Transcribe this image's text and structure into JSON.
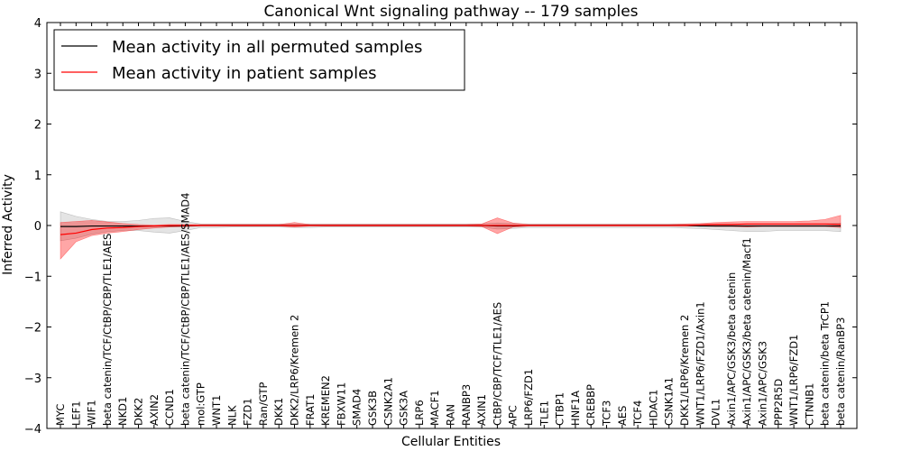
{
  "chart_data": {
    "type": "line",
    "title": "Canonical Wnt signaling pathway -- 179 samples",
    "xlabel": "Cellular Entities",
    "ylabel": "Inferred Activity",
    "ylim": [
      -4,
      4
    ],
    "yticks": [
      -4,
      -3,
      -2,
      -1,
      0,
      1,
      2,
      3,
      4
    ],
    "ytick_labels": [
      "−4",
      "−3",
      "−2",
      "−1",
      "0",
      "1",
      "2",
      "3",
      "4"
    ],
    "categories": [
      "MYC",
      "LEF1",
      "WIF1",
      "beta catenin/TCF/CtBP/CBP/TLE1/AES",
      "NKD1",
      "DKK2",
      "AXIN2",
      "CCND1",
      "beta catenin/TCF/CtBP/CBP/TLE1/AES/SMAD4",
      "mol:GTP",
      "WNT1",
      "NLK",
      "FZD1",
      "Ran/GTP",
      "DKK1",
      "DKK2/LRP6/Kremen 2",
      "FRAT1",
      "KREMEN2",
      "FBXW11",
      "SMAD4",
      "GSK3B",
      "CSNK2A1",
      "GSK3A",
      "LRP6",
      "MACF1",
      "RAN",
      "RANBP3",
      "AXIN1",
      "CtBP/CBP/TCF/TLE1/AES",
      "APC",
      "LRP6/FZD1",
      "TLE1",
      "CTBP1",
      "HNF1A",
      "CREBBP",
      "TCF3",
      "AES",
      "TCF4",
      "HDAC1",
      "CSNK1A1",
      "DKK1/LRP6/Kremen 2",
      "WNT1/LRP6/FZD1/Axin1",
      "DVL1",
      "Axin1/APC/GSK3/beta catenin",
      "Axin1/APC/GSK3/beta catenin/Macf1",
      "Axin1/APC/GSK3",
      "PPP2R5D",
      "WNT1/LRP6/FZD1",
      "CTNNB1",
      "beta catenin/beta TrCP1",
      "beta catenin/RanBP3"
    ],
    "legend_position": "top-left",
    "series": [
      {
        "name": "Mean activity in all permuted samples",
        "color": "#000000",
        "values": [
          -0.02,
          -0.02,
          -0.01,
          -0.01,
          -0.01,
          -0.01,
          -0.01,
          -0.01,
          -0.01,
          0,
          0,
          0,
          0,
          0,
          0,
          0,
          0,
          0,
          0,
          0,
          0,
          0,
          0,
          0,
          0,
          0,
          0,
          0,
          -0.01,
          -0.01,
          0,
          0,
          0,
          0,
          0,
          0,
          0,
          0,
          0,
          0,
          0,
          -0.01,
          -0.01,
          -0.01,
          -0.01,
          -0.01,
          -0.01,
          -0.01,
          -0.01,
          -0.01,
          -0.01
        ],
        "band_lower": [
          -0.3,
          -0.25,
          -0.17,
          -0.12,
          -0.1,
          -0.1,
          -0.13,
          -0.15,
          -0.1,
          -0.04,
          -0.04,
          -0.03,
          -0.03,
          -0.03,
          -0.03,
          -0.04,
          -0.04,
          -0.03,
          -0.03,
          -0.03,
          -0.03,
          -0.03,
          -0.03,
          -0.03,
          -0.03,
          -0.03,
          -0.03,
          -0.03,
          -0.07,
          -0.06,
          -0.04,
          -0.04,
          -0.04,
          -0.04,
          -0.04,
          -0.04,
          -0.04,
          -0.04,
          -0.04,
          -0.04,
          -0.05,
          -0.06,
          -0.08,
          -0.1,
          -0.12,
          -0.12,
          -0.1,
          -0.1,
          -0.1,
          -0.1,
          -0.12
        ],
        "band_upper": [
          0.27,
          0.18,
          0.12,
          0.08,
          0.08,
          0.1,
          0.14,
          0.15,
          0.08,
          0.03,
          0.03,
          0.03,
          0.03,
          0.03,
          0.03,
          0.03,
          0.03,
          0.03,
          0.03,
          0.03,
          0.03,
          0.03,
          0.03,
          0.03,
          0.03,
          0.03,
          0.03,
          0.03,
          0.05,
          0.04,
          0.03,
          0.03,
          0.03,
          0.03,
          0.03,
          0.03,
          0.03,
          0.03,
          0.03,
          0.03,
          0.03,
          0.03,
          0.03,
          0.03,
          0.03,
          0.03,
          0.03,
          0.03,
          0.03,
          0.03,
          0.05
        ],
        "band_color": "#bbbbbb"
      },
      {
        "name": "Mean activity in patient samples",
        "color": "#ff0000",
        "values": [
          -0.18,
          -0.15,
          -0.08,
          -0.05,
          -0.04,
          -0.02,
          -0.01,
          0,
          0,
          0,
          0,
          0,
          0,
          0,
          0,
          0,
          0,
          0,
          0,
          0,
          0,
          0,
          0,
          0,
          0,
          0,
          0,
          0,
          0,
          0,
          0,
          0,
          0,
          0,
          0,
          0,
          0,
          0,
          0,
          0,
          0,
          0.01,
          0.02,
          0.02,
          0.03,
          0.03,
          0.03,
          0.03,
          0.03,
          0.03,
          0.02
        ],
        "band_lower": [
          -0.66,
          -0.32,
          -0.2,
          -0.15,
          -0.12,
          -0.08,
          -0.05,
          -0.03,
          -0.02,
          -0.01,
          -0.01,
          -0.01,
          -0.01,
          -0.01,
          -0.01,
          -0.03,
          -0.01,
          -0.01,
          -0.01,
          -0.01,
          -0.01,
          -0.01,
          -0.01,
          -0.01,
          -0.01,
          -0.01,
          -0.01,
          -0.02,
          -0.16,
          -0.03,
          -0.01,
          -0.01,
          -0.01,
          -0.01,
          -0.01,
          -0.01,
          -0.01,
          -0.01,
          -0.01,
          -0.01,
          -0.01,
          -0.01,
          -0.02,
          -0.02,
          -0.03,
          -0.02,
          -0.02,
          -0.02,
          -0.02,
          -0.02,
          -0.04
        ],
        "band_upper": [
          0.06,
          0.08,
          0.1,
          0.07,
          0.04,
          0.02,
          0.01,
          0.02,
          0.02,
          0.02,
          0.02,
          0.02,
          0.02,
          0.02,
          0.02,
          0.06,
          0.02,
          0.02,
          0.02,
          0.02,
          0.02,
          0.02,
          0.02,
          0.02,
          0.02,
          0.02,
          0.02,
          0.03,
          0.15,
          0.05,
          0.02,
          0.02,
          0.02,
          0.02,
          0.02,
          0.02,
          0.02,
          0.02,
          0.02,
          0.02,
          0.03,
          0.04,
          0.06,
          0.07,
          0.08,
          0.08,
          0.08,
          0.08,
          0.09,
          0.12,
          0.2
        ],
        "band_color": "#ff0000"
      }
    ]
  }
}
